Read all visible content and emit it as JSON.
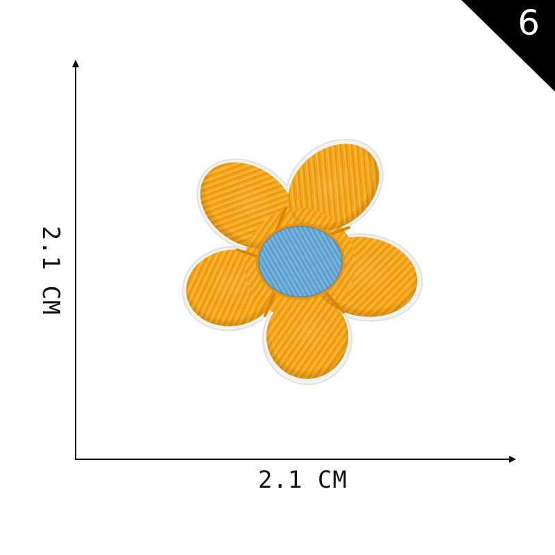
{
  "badge": {
    "number": "6",
    "color": "#000000"
  },
  "dimensions": {
    "width_label": "2.1 CM",
    "height_label": "2.1 CM"
  },
  "product": {
    "icon": "flower-patch-icon",
    "petal_color": "#F7A81B",
    "center_color": "#6AA9D3"
  }
}
